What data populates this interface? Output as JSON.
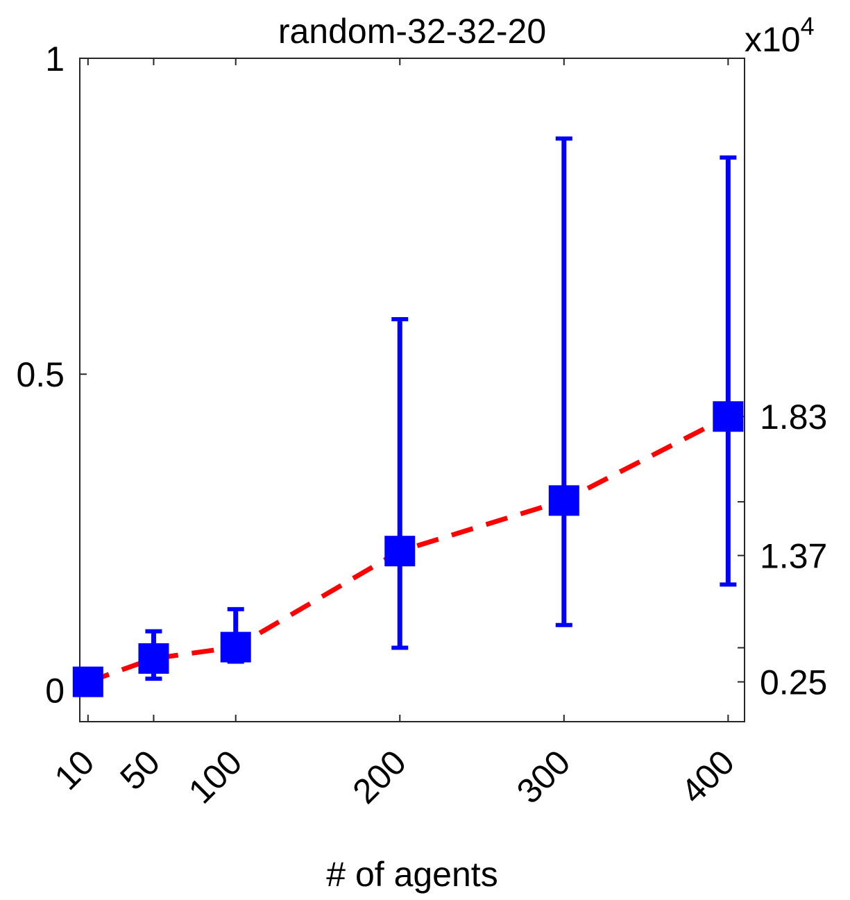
{
  "chart_data": {
    "type": "line",
    "title": "random-32-32-20",
    "xlabel": "# of agents",
    "ylabel": "",
    "y_exponent_label": "x10",
    "y_exponent_power": "4",
    "x": [
      10,
      50,
      100,
      200,
      300,
      400
    ],
    "x_tick_labels": [
      "10",
      "50",
      "100",
      "200",
      "300",
      "400"
    ],
    "xlim": [
      5,
      410
    ],
    "left_axis": {
      "ylim": [
        -0.05,
        1.0
      ],
      "ticks": [
        0,
        0.5,
        1
      ],
      "tick_labels": [
        "0",
        "0.5",
        "1"
      ]
    },
    "right_axis": {
      "tick_labels": [
        "0.25",
        "1.37",
        "1.83"
      ],
      "tick_positions_left_units": [
        0.013,
        0.213,
        0.433
      ],
      "unlabeled_tick_positions_left_units": [
        0.067,
        0.298
      ]
    },
    "series": [
      {
        "values": [
          0.013,
          0.05,
          0.068,
          0.22,
          0.3,
          0.433
        ],
        "error_low": [
          0.013,
          0.018,
          0.045,
          0.067,
          0.103,
          0.167
        ],
        "error_high": [
          0.013,
          0.093,
          0.128,
          0.587,
          0.873,
          0.843
        ],
        "line_color": "#ff0000",
        "line_style": "dashed",
        "marker": "square",
        "marker_color": "#0000ff",
        "errorbar_color": "#0000ff"
      }
    ],
    "grid": false
  }
}
